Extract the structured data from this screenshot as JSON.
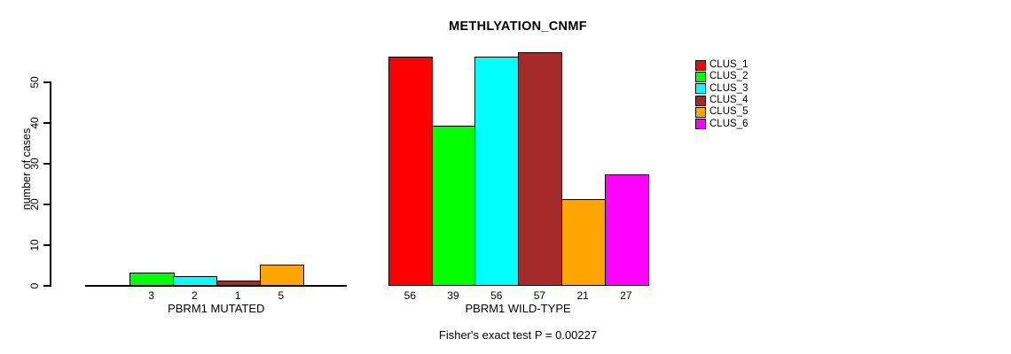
{
  "chart_data": {
    "type": "bar",
    "title": "METHLYATION_CNMF",
    "ylabel": "number of cases",
    "ylim": [
      0,
      50
    ],
    "yticks": [
      0,
      10,
      20,
      30,
      40,
      50
    ],
    "grid": false,
    "legend_position": "right",
    "clusters": [
      {
        "name": "CLUS_1",
        "color": "#FF0000"
      },
      {
        "name": "CLUS_2",
        "color": "#00FF00"
      },
      {
        "name": "CLUS_3",
        "color": "#00FFFF"
      },
      {
        "name": "CLUS_4",
        "color": "#A52A2A"
      },
      {
        "name": "CLUS_5",
        "color": "#FFA500"
      },
      {
        "name": "CLUS_6",
        "color": "#FF00FF"
      }
    ],
    "groups": [
      {
        "label": "PBRM1 MUTATED",
        "values": [
          0,
          3,
          2,
          1,
          5,
          0
        ],
        "bar_labels": [
          "",
          "3",
          "2",
          "1",
          "5",
          ""
        ]
      },
      {
        "label": "PBRM1 WILD-TYPE",
        "values": [
          56,
          39,
          56,
          57,
          21,
          27
        ],
        "bar_labels": [
          "56",
          "39",
          "56",
          "57",
          "21",
          "27"
        ]
      }
    ],
    "footnote": "Fisher's exact test P = 0.00227"
  }
}
